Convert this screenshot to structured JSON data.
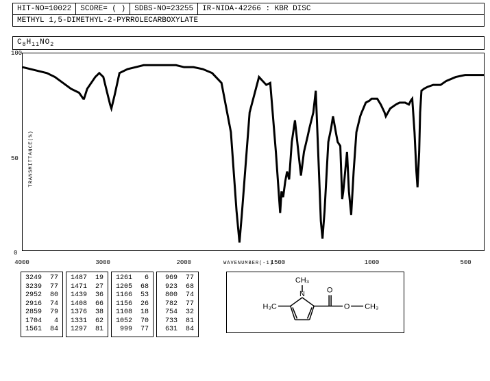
{
  "header": {
    "hit_no": "HIT-NO=10022",
    "score": "SCORE=  (  )",
    "sdbs_no": "SDBS-NO=23255",
    "ir_info": "IR-NIDA-42266 : KBR DISC"
  },
  "compound_name": "METHYL 1,5-DIMETHYL-2-PYRROLECARBOXYLATE",
  "formula_html": "C<sub>8</sub>H<sub>11</sub>NO<sub>2</sub>",
  "chart": {
    "type": "line",
    "x_axis_label": "WAVENUMBER(-1)",
    "y_axis_label": "TRANSMITTANCE(%)",
    "xlim": [
      4000,
      400
    ],
    "ylim": [
      0,
      100
    ],
    "xticks": [
      "4000",
      "3000",
      "2000",
      "1500",
      "1000",
      "500"
    ],
    "yticks": [
      "100",
      "50",
      "0"
    ],
    "line_color": "#000000",
    "background_color": "#ffffff",
    "border_color": "#000000",
    "points": [
      [
        4000,
        93
      ],
      [
        3900,
        92
      ],
      [
        3800,
        91
      ],
      [
        3700,
        90
      ],
      [
        3600,
        88
      ],
      [
        3500,
        85
      ],
      [
        3400,
        82
      ],
      [
        3300,
        80
      ],
      [
        3249,
        77
      ],
      [
        3239,
        77
      ],
      [
        3200,
        82
      ],
      [
        3100,
        88
      ],
      [
        3050,
        90
      ],
      [
        3000,
        88
      ],
      [
        2952,
        80
      ],
      [
        2916,
        74
      ],
      [
        2900,
        72
      ],
      [
        2859,
        79
      ],
      [
        2800,
        90
      ],
      [
        2700,
        92
      ],
      [
        2600,
        93
      ],
      [
        2500,
        94
      ],
      [
        2400,
        94
      ],
      [
        2300,
        94
      ],
      [
        2200,
        94
      ],
      [
        2100,
        94
      ],
      [
        2000,
        93
      ],
      [
        1950,
        93
      ],
      [
        1900,
        92
      ],
      [
        1850,
        90
      ],
      [
        1800,
        85
      ],
      [
        1750,
        60
      ],
      [
        1720,
        20
      ],
      [
        1704,
        4
      ],
      [
        1690,
        20
      ],
      [
        1650,
        70
      ],
      [
        1600,
        88
      ],
      [
        1561,
        84
      ],
      [
        1540,
        85
      ],
      [
        1510,
        50
      ],
      [
        1487,
        19
      ],
      [
        1480,
        30
      ],
      [
        1471,
        27
      ],
      [
        1460,
        35
      ],
      [
        1450,
        40
      ],
      [
        1439,
        36
      ],
      [
        1425,
        55
      ],
      [
        1408,
        66
      ],
      [
        1390,
        50
      ],
      [
        1376,
        38
      ],
      [
        1360,
        50
      ],
      [
        1340,
        58
      ],
      [
        1331,
        62
      ],
      [
        1310,
        70
      ],
      [
        1297,
        81
      ],
      [
        1280,
        40
      ],
      [
        1270,
        15
      ],
      [
        1261,
        6
      ],
      [
        1250,
        20
      ],
      [
        1230,
        55
      ],
      [
        1215,
        62
      ],
      [
        1205,
        68
      ],
      [
        1190,
        60
      ],
      [
        1180,
        55
      ],
      [
        1166,
        53
      ],
      [
        1156,
        26
      ],
      [
        1150,
        30
      ],
      [
        1130,
        50
      ],
      [
        1120,
        30
      ],
      [
        1108,
        18
      ],
      [
        1095,
        40
      ],
      [
        1080,
        60
      ],
      [
        1060,
        68
      ],
      [
        1052,
        70
      ],
      [
        1030,
        75
      ],
      [
        1010,
        76
      ],
      [
        999,
        77
      ],
      [
        980,
        77
      ],
      [
        969,
        77
      ],
      [
        950,
        74
      ],
      [
        930,
        70
      ],
      [
        923,
        68
      ],
      [
        900,
        72
      ],
      [
        870,
        74
      ],
      [
        850,
        75
      ],
      [
        820,
        75
      ],
      [
        800,
        74
      ],
      [
        790,
        76
      ],
      [
        782,
        77
      ],
      [
        770,
        60
      ],
      [
        760,
        40
      ],
      [
        754,
        32
      ],
      [
        745,
        50
      ],
      [
        740,
        70
      ],
      [
        733,
        81
      ],
      [
        720,
        82
      ],
      [
        700,
        83
      ],
      [
        670,
        84
      ],
      [
        650,
        84
      ],
      [
        640,
        84
      ],
      [
        631,
        84
      ],
      [
        600,
        86
      ],
      [
        550,
        88
      ],
      [
        500,
        89
      ],
      [
        450,
        89
      ],
      [
        400,
        89
      ]
    ]
  },
  "peak_columns": [
    [
      [
        "3249",
        "77"
      ],
      [
        "3239",
        "77"
      ],
      [
        "2952",
        "80"
      ],
      [
        "2916",
        "74"
      ],
      [
        "2859",
        "79"
      ],
      [
        "1704",
        " 4"
      ],
      [
        "1561",
        "84"
      ]
    ],
    [
      [
        "1487",
        "19"
      ],
      [
        "1471",
        "27"
      ],
      [
        "1439",
        "36"
      ],
      [
        "1408",
        "66"
      ],
      [
        "1376",
        "38"
      ],
      [
        "1331",
        "62"
      ],
      [
        "1297",
        "81"
      ]
    ],
    [
      [
        "1261",
        " 6"
      ],
      [
        "1205",
        "68"
      ],
      [
        "1166",
        "53"
      ],
      [
        "1156",
        "26"
      ],
      [
        "1108",
        "18"
      ],
      [
        "1052",
        "70"
      ],
      [
        " 999",
        "77"
      ]
    ],
    [
      [
        " 969",
        "77"
      ],
      [
        " 923",
        "68"
      ],
      [
        " 800",
        "74"
      ],
      [
        " 782",
        "77"
      ],
      [
        " 754",
        "32"
      ],
      [
        " 733",
        "81"
      ],
      [
        " 631",
        "84"
      ]
    ]
  ],
  "structure": {
    "labels": {
      "nch3": "CH₃",
      "cch3_left": "H₃C",
      "och3": "CH₃",
      "o_dbl": "O",
      "o_single": "O",
      "n": "N"
    },
    "line_color": "#000000",
    "font_size": 11
  }
}
